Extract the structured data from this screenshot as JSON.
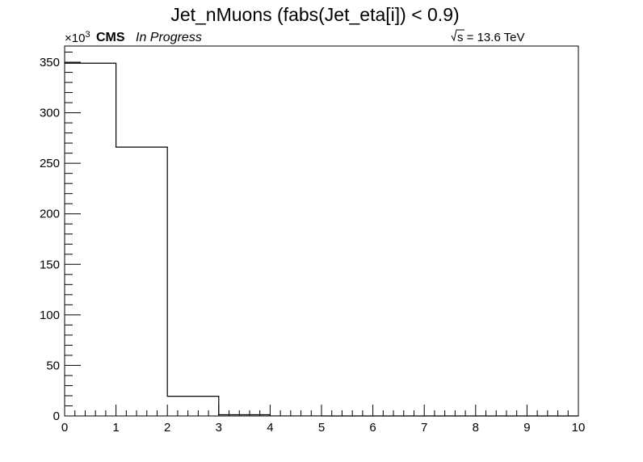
{
  "chart_data": {
    "type": "bar",
    "title": "Jet_nMuons (fabs(Jet_eta[i]) < 0.9)",
    "xlabel": "",
    "ylabel": "",
    "y_multiplier_label": "×10",
    "y_multiplier_exponent": "3",
    "experiment_label": "CMS",
    "status_label": "In Progress",
    "energy_label": "s = 13.6 TeV",
    "bin_edges": [
      0,
      1,
      2,
      3,
      4,
      5,
      6,
      7,
      8,
      9,
      10
    ],
    "values": [
      349,
      266,
      19.5,
      1.2,
      0.05,
      0,
      0,
      0,
      0,
      0
    ],
    "xlim": [
      0,
      10
    ],
    "ylim": [
      0,
      366
    ],
    "x_ticks": [
      "0",
      "1",
      "2",
      "3",
      "4",
      "5",
      "6",
      "7",
      "8",
      "9",
      "10"
    ],
    "y_ticks": [
      "0",
      "50",
      "100",
      "150",
      "200",
      "250",
      "300",
      "350"
    ],
    "grid": false,
    "legend": "none",
    "line_color": "#000000"
  }
}
